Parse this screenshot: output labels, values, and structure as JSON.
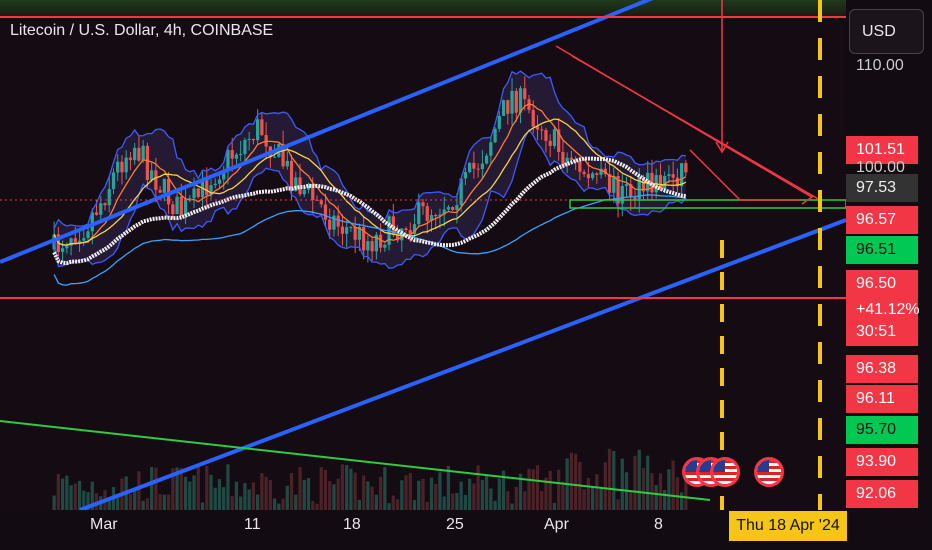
{
  "header": {
    "title": "Litecoin / U.S. Dollar, 4h, COINBASE",
    "currency": "USD"
  },
  "price_scale": [
    {
      "value": "110.00",
      "style": "plain",
      "row": 0
    },
    {
      "value": "101.51",
      "style": "red",
      "row": 1
    },
    {
      "value": "100.00",
      "style": "plain",
      "row": 2
    },
    {
      "value": "97.53",
      "style": "grey",
      "row": 3
    },
    {
      "value": "96.57",
      "style": "red",
      "row": 4
    },
    {
      "value": "96.51",
      "style": "green2",
      "row": 5
    },
    {
      "value": "96.50",
      "style": "red",
      "row": 6
    },
    {
      "value": "+41.12%",
      "style": "red",
      "row": 7
    },
    {
      "value": "30:51",
      "style": "red",
      "row": 8
    },
    {
      "value": "96.38",
      "style": "red",
      "row": 9
    },
    {
      "value": "96.11",
      "style": "red",
      "row": 10
    },
    {
      "value": "95.70",
      "style": "green2",
      "row": 11
    },
    {
      "value": "93.90",
      "style": "red",
      "row": 12
    },
    {
      "value": "92.06",
      "style": "red",
      "row": 13
    }
  ],
  "time_axis": [
    "Mar",
    "11",
    "18",
    "25",
    "Apr",
    "8"
  ],
  "crosshair_date": "Thu 18 Apr '24",
  "chart_data": {
    "type": "candlestick",
    "title": "Litecoin / U.S. Dollar, 4h, COINBASE",
    "x_ticks": [
      "Mar",
      "11",
      "18",
      "25",
      "Apr",
      "8"
    ],
    "y_ticks": [
      92.06,
      93.9,
      95.7,
      96.11,
      96.38,
      96.5,
      96.51,
      96.57,
      97.53,
      100.0,
      101.51,
      110.0
    ],
    "last_price": 97.53,
    "change": "+41.12%",
    "countdown": "30:51",
    "indicators": [
      "moving averages",
      "bollinger bands",
      "volume"
    ],
    "colors": {
      "up": "#26a69a",
      "down": "#ef5350",
      "channel": "#2962ff",
      "level": "#f23645",
      "crosshair": "#f5c518"
    },
    "close_path": [
      66,
      70,
      72,
      78,
      86,
      92,
      86,
      80,
      75,
      78,
      84,
      88,
      92,
      96,
      90,
      84,
      80,
      76,
      72,
      70,
      68,
      70,
      72,
      74,
      76,
      78,
      82,
      88,
      96,
      104,
      100,
      96,
      90,
      86,
      84,
      82,
      80,
      80,
      82,
      84,
      86
    ]
  }
}
